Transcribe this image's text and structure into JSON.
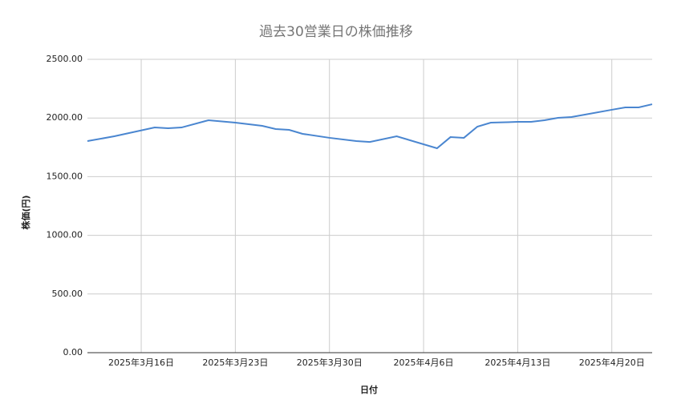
{
  "chart_data": {
    "type": "line",
    "title": "過去30営業日の株価推移",
    "x_label": "日付",
    "y_label": "株価(円)",
    "x": [
      "2025-03-12",
      "2025-03-14",
      "2025-03-17",
      "2025-03-18",
      "2025-03-19",
      "2025-03-21",
      "2025-03-23",
      "2025-03-25",
      "2025-03-26",
      "2025-03-27",
      "2025-03-28",
      "2025-03-30",
      "2025-04-01",
      "2025-04-02",
      "2025-04-04",
      "2025-04-07",
      "2025-04-08",
      "2025-04-09",
      "2025-04-10",
      "2025-04-11",
      "2025-04-13",
      "2025-04-14",
      "2025-04-15",
      "2025-04-16",
      "2025-04-17",
      "2025-04-18",
      "2025-04-20",
      "2025-04-21",
      "2025-04-22",
      "2025-04-23"
    ],
    "series": [
      {
        "color": "#4a86d0",
        "values": [
          1803,
          1844,
          1919,
          1913,
          1919,
          1981,
          1960,
          1933,
          1906,
          1899,
          1865,
          1831,
          1803,
          1796,
          1844,
          1742,
          1837,
          1831,
          1926,
          1960,
          1967,
          1967,
          1981,
          2001,
          2008,
          2029,
          2070,
          2090,
          2090,
          2117
        ]
      }
    ],
    "xlim": [
      "2025-03-12",
      "2025-04-23"
    ],
    "xticks": [
      {
        "value": "2025-03-16",
        "label": "2025年3月16日"
      },
      {
        "value": "2025-03-23",
        "label": "2025年3月23日"
      },
      {
        "value": "2025-03-30",
        "label": "2025年3月30日"
      },
      {
        "value": "2025-04-06",
        "label": "2025年4月6日"
      },
      {
        "value": "2025-04-13",
        "label": "2025年4月13日"
      },
      {
        "value": "2025-04-20",
        "label": "2025年4月20日"
      }
    ],
    "ylim": [
      0,
      2500
    ],
    "yticks": [
      {
        "value": 0,
        "label": "0.00"
      },
      {
        "value": 500,
        "label": "500.00"
      },
      {
        "value": 1000,
        "label": "1000.00"
      },
      {
        "value": 1500,
        "label": "1500.00"
      },
      {
        "value": 2000,
        "label": "2000.00"
      },
      {
        "value": 2500,
        "label": "2500.00"
      }
    ],
    "grid": true
  }
}
